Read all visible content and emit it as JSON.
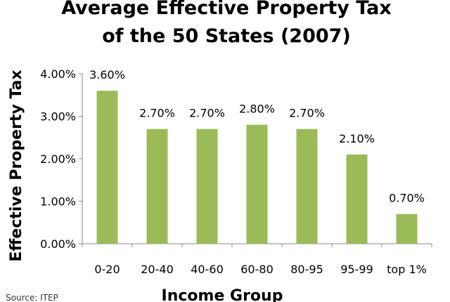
{
  "chart_data": {
    "type": "bar",
    "title_line1": "Average Effective Property Tax",
    "title_line2": "of the 50 States (2007)",
    "xlabel": "Income Group",
    "ylabel": "Effective Property Tax",
    "categories": [
      "0-20",
      "20-40",
      "40-60",
      "60-80",
      "80-95",
      "95-99",
      "top 1%"
    ],
    "values": [
      3.6,
      2.7,
      2.7,
      2.8,
      2.7,
      2.1,
      0.7
    ],
    "data_labels": [
      "3.60%",
      "2.70%",
      "2.70%",
      "2.80%",
      "2.70%",
      "2.10%",
      "0.70%"
    ],
    "ylim": [
      0,
      4
    ],
    "y_ticks": [
      0,
      1,
      2,
      3,
      4
    ],
    "y_tick_labels": [
      "0.00%",
      "1.00%",
      "2.00%",
      "3.00%",
      "4.00%"
    ],
    "grid": false,
    "legend": "none",
    "bar_color": "#9bbb59",
    "axis_color": "#888888",
    "source": "Source: ITEP"
  }
}
